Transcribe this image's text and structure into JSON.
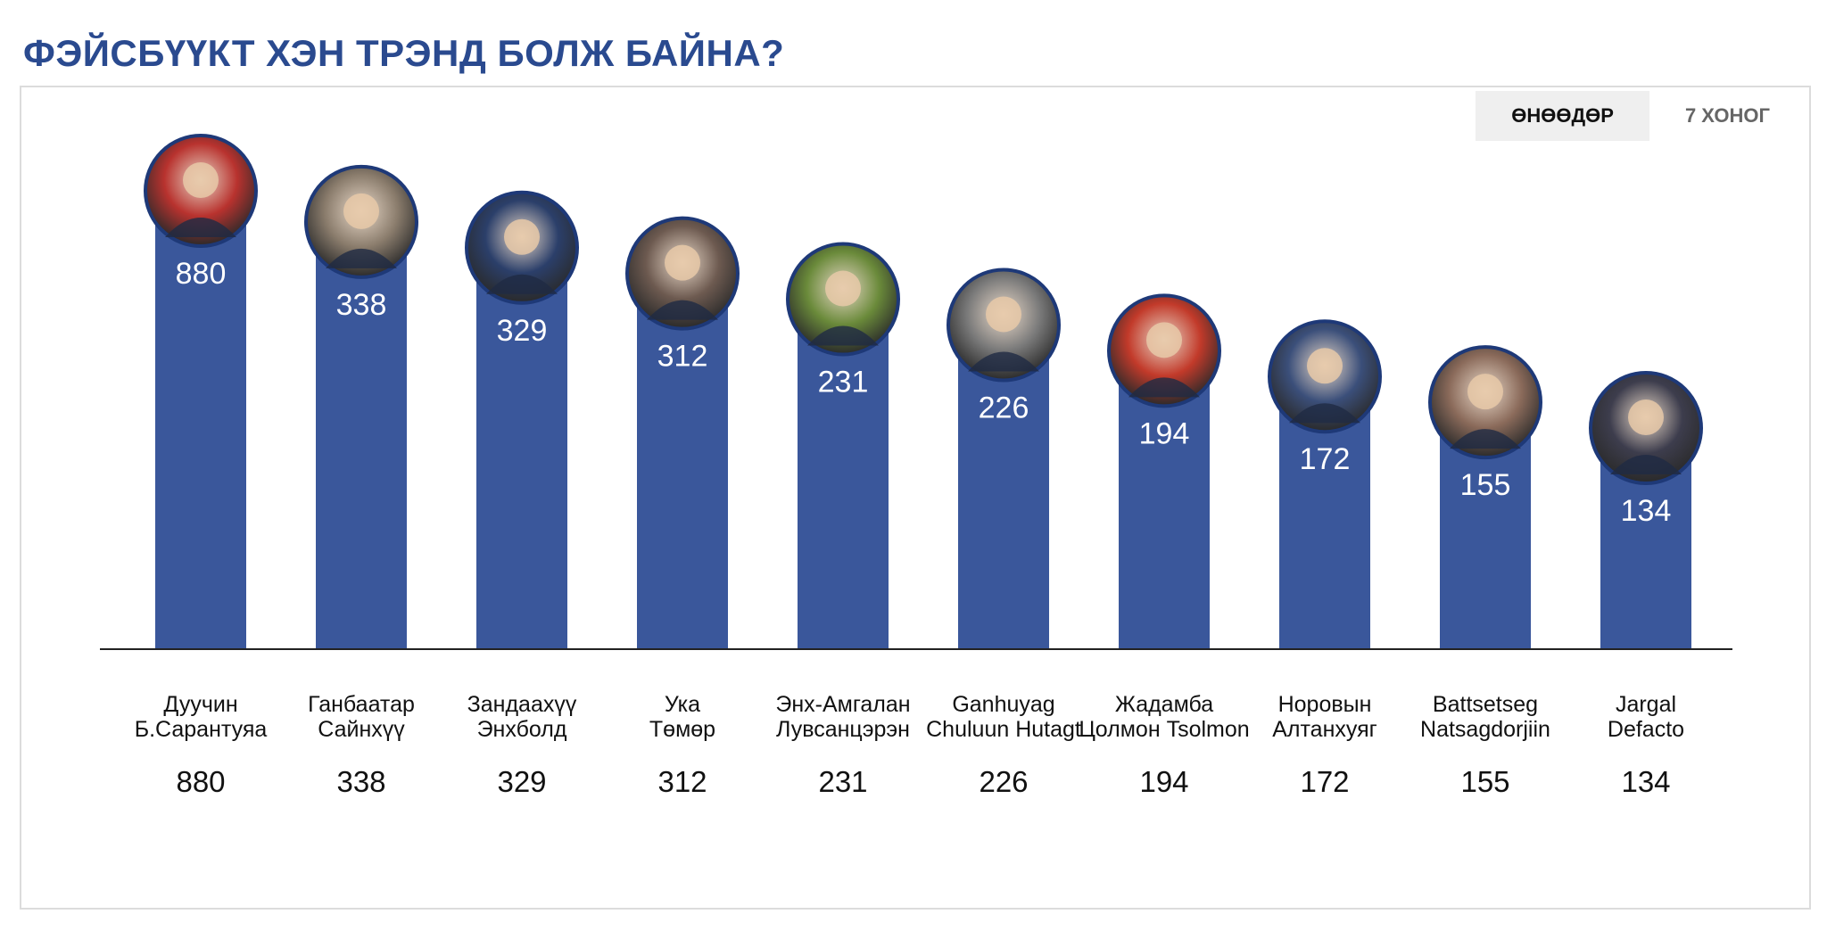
{
  "header": {
    "title": "ФЭЙСБҮҮКТ ХЭН ТРЭНД БОЛЖ БАЙНА?"
  },
  "tabs": [
    {
      "label": "ӨНӨӨДӨР",
      "active": true
    },
    {
      "label": "7 ХОНОГ",
      "active": false
    }
  ],
  "colors": {
    "bar": "#3a579b",
    "title": "#2a4a8f",
    "ring": "#1e3978"
  },
  "chart_data": {
    "type": "bar",
    "categories": [
      [
        "Дуучин",
        "Б.Сарантуяа"
      ],
      [
        "Ганбаатар",
        "Сайнхүү"
      ],
      [
        "Зандаахүү",
        "Энхболд"
      ],
      [
        "Ука",
        "Төмөр"
      ],
      [
        "Энх-Амгалан",
        "Лувсанцэрэн"
      ],
      [
        "Ganhuyag",
        "Chuluun Hutagt"
      ],
      [
        "Жадамба",
        "Цолмон Tsolmon"
      ],
      [
        "Норовын",
        "Алтанхуяг"
      ],
      [
        "Battsetseg",
        "Natsagdorjiin"
      ],
      [
        "Jargal",
        "Defacto"
      ]
    ],
    "values": [
      880,
      338,
      329,
      312,
      231,
      226,
      194,
      172,
      155,
      134
    ],
    "avatar_colors": [
      "#b8322e",
      "#8a7c6c",
      "#2b3f6a",
      "#6d5a50",
      "#6a8a3a",
      "#7a7a7a",
      "#c23a2a",
      "#3b4f7a",
      "#8a6a5a",
      "#3d3d4d"
    ]
  }
}
